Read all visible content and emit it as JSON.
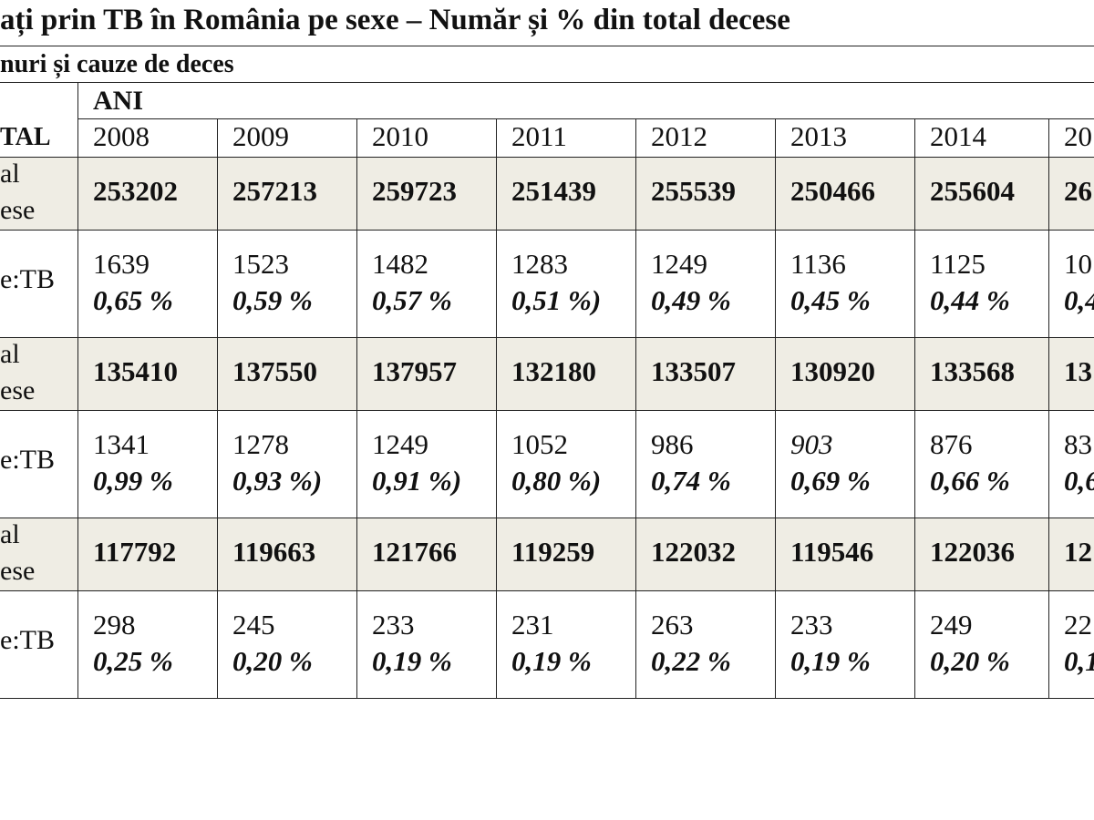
{
  "page": {
    "title": "ați prin TB în România pe sexe – Număr și % din total decese",
    "subtitle": "nuri și cauze de deces"
  },
  "table": {
    "group_header": "ANI",
    "corner_label": "TAL",
    "years": [
      "2008",
      "2009",
      "2010",
      "2011",
      "2012",
      "2013",
      "2014",
      "20"
    ],
    "rows": [
      {
        "type": "total",
        "label_line1": "al",
        "label_line2": "ese",
        "values": [
          "253202",
          "257213",
          "259723",
          "251439",
          "255539",
          "250466",
          "255604",
          "26"
        ]
      },
      {
        "type": "tb",
        "label_line1": "",
        "label_line2": "e:TB",
        "values": [
          "1639",
          "1523",
          "1482",
          "1283",
          "1249",
          "1136",
          "1125",
          "10"
        ],
        "percents": [
          "0,65 %",
          "0,59 %",
          "0,57 %",
          "0,51 %)",
          "0,49 %",
          "0,45 %",
          "0,44 %",
          "0,4"
        ]
      },
      {
        "type": "total",
        "label_line1": "al",
        "label_line2": "ese",
        "values": [
          "135410",
          "137550",
          "137957",
          "132180",
          "133507",
          "130920",
          "133568",
          "13"
        ]
      },
      {
        "type": "tb",
        "label_line1": "",
        "label_line2": "e:TB",
        "values": [
          "1341",
          "1278",
          "1249",
          "1052",
          "986",
          "903",
          "876",
          "83"
        ],
        "percents": [
          "0,99 %",
          "0,93 %)",
          "0,91 %)",
          "0,80 %)",
          "0,74 %",
          "0,69 %",
          "0,66 %",
          "0,6"
        ]
      },
      {
        "type": "total",
        "label_line1": "al",
        "label_line2": "ese",
        "values": [
          "117792",
          "119663",
          "121766",
          "119259",
          "122032",
          "119546",
          "122036",
          "12"
        ]
      },
      {
        "type": "tb",
        "label_line1": "",
        "label_line2": "e:TB",
        "values": [
          "298",
          "245",
          "233",
          "231",
          "263",
          "233",
          "249",
          "22"
        ],
        "percents": [
          "0,25 %",
          "0,20 %",
          "0,19 %",
          "0,19 %",
          "0,22 %",
          "0,19 %",
          "0,20 %",
          "0,1"
        ]
      }
    ]
  }
}
